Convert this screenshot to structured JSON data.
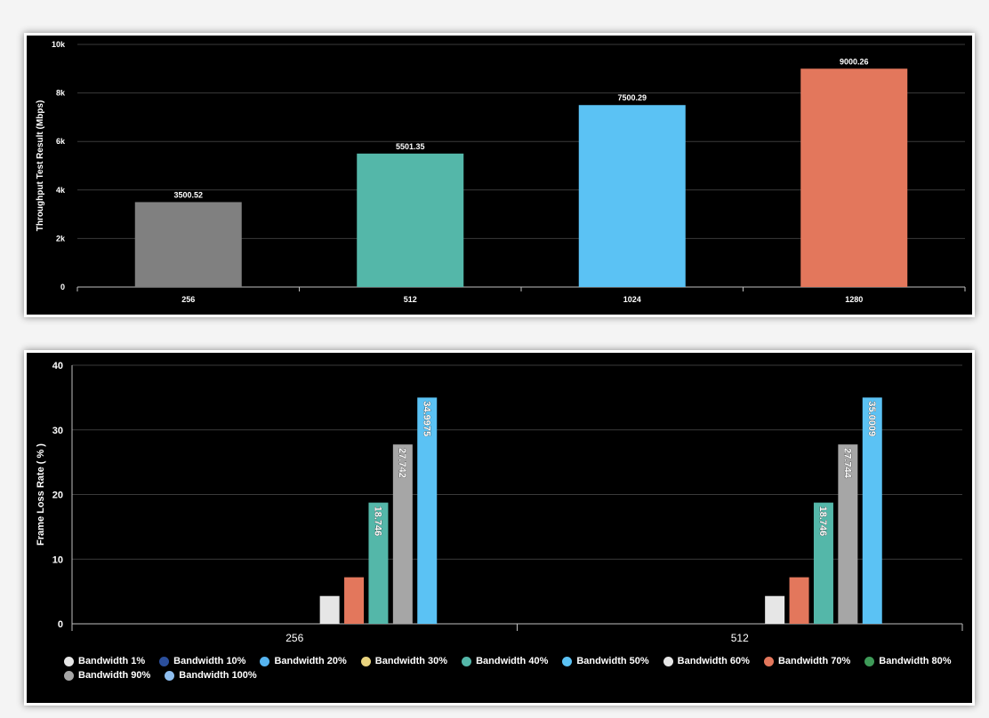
{
  "chart_data": [
    {
      "type": "bar",
      "title": "",
      "xlabel": "",
      "ylabel": "Throughput Test Result (Mbps)",
      "ylim": [
        0,
        10000
      ],
      "yticks": [
        0,
        2000,
        4000,
        6000,
        8000,
        10000
      ],
      "ytick_labels": [
        "0",
        "2k",
        "4k",
        "6k",
        "8k",
        "10k"
      ],
      "categories": [
        "256",
        "512",
        "1024",
        "1280"
      ],
      "values": [
        3500.52,
        5501.35,
        7500.29,
        9000.26
      ],
      "data_labels": [
        "3500.52",
        "5501.35",
        "7500.29",
        "9000.26"
      ],
      "colors": [
        "#808080",
        "#54b7a9",
        "#5bc2f4",
        "#e3775c"
      ],
      "grid": true
    },
    {
      "type": "bar",
      "title": "",
      "xlabel": "",
      "ylabel": "Frame Loss Rate ( % )",
      "ylim": [
        0,
        40
      ],
      "yticks": [
        0,
        10,
        20,
        30,
        40
      ],
      "ytick_labels": [
        "0",
        "10",
        "20",
        "30",
        "40"
      ],
      "categories": [
        "256",
        "512"
      ],
      "grid": true,
      "legend_position": "bottom",
      "series": [
        {
          "name": "Bandwidth 1%",
          "color": "#e6e6e6",
          "values": [
            0,
            0
          ],
          "labels": [
            "",
            ""
          ]
        },
        {
          "name": "Bandwidth 10%",
          "color": "#2b4f9c",
          "values": [
            0,
            0
          ],
          "labels": [
            "",
            ""
          ]
        },
        {
          "name": "Bandwidth 20%",
          "color": "#56b4f0",
          "values": [
            0,
            0
          ],
          "labels": [
            "",
            ""
          ]
        },
        {
          "name": "Bandwidth 30%",
          "color": "#ead47f",
          "values": [
            0,
            0
          ],
          "labels": [
            "",
            ""
          ]
        },
        {
          "name": "Bandwidth 40%",
          "color": "#54b7a9",
          "values": [
            0,
            0
          ],
          "labels": [
            "",
            ""
          ]
        },
        {
          "name": "Bandwidth 50%",
          "color": "#5bc2f4",
          "values": [
            0,
            0
          ],
          "labels": [
            "",
            ""
          ]
        },
        {
          "name": "Bandwidth 60%",
          "color": "#e6e6e6",
          "values": [
            4.3,
            4.3
          ],
          "labels": [
            "",
            ""
          ]
        },
        {
          "name": "Bandwidth 70%",
          "color": "#e3775c",
          "values": [
            7.2,
            7.2
          ],
          "labels": [
            "",
            ""
          ]
        },
        {
          "name": "Bandwidth 80%",
          "color": "#54b7a9",
          "values": [
            18.746,
            18.746
          ],
          "labels": [
            "18.746",
            "18.746"
          ]
        },
        {
          "name": "Bandwidth 90%",
          "color": "#a6a6a6",
          "values": [
            27.742,
            27.744
          ],
          "labels": [
            "27.742",
            "27.744"
          ]
        },
        {
          "name": "Bandwidth 100%",
          "color": "#5bc2f4",
          "values": [
            34.9975,
            35.0009
          ],
          "labels": [
            "34.9975",
            "35.0009"
          ]
        }
      ],
      "legend": [
        {
          "name": "Bandwidth 1%",
          "color": "#e6e6e6"
        },
        {
          "name": "Bandwidth 10%",
          "color": "#2b4f9c"
        },
        {
          "name": "Bandwidth 20%",
          "color": "#56b4f0"
        },
        {
          "name": "Bandwidth 30%",
          "color": "#ead47f"
        },
        {
          "name": "Bandwidth 40%",
          "color": "#54b7a9"
        },
        {
          "name": "Bandwidth 50%",
          "color": "#5bc2f4"
        },
        {
          "name": "Bandwidth 60%",
          "color": "#e6e6e6"
        },
        {
          "name": "Bandwidth 70%",
          "color": "#e3775c"
        },
        {
          "name": "Bandwidth 80%",
          "color": "#3e9a58"
        },
        {
          "name": "Bandwidth 90%",
          "color": "#a6a6a6"
        },
        {
          "name": "Bandwidth 100%",
          "color": "#8fbff0"
        }
      ]
    }
  ]
}
